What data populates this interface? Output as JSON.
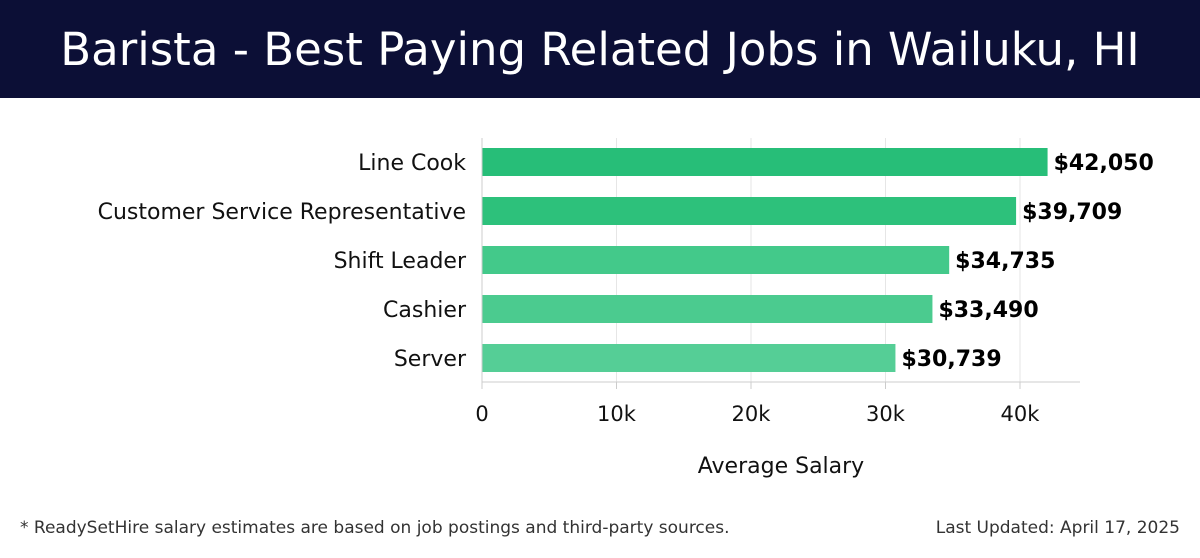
{
  "header": {
    "title": "Barista - Best Paying Related Jobs in Wailuku, HI"
  },
  "chart_data": {
    "type": "bar",
    "orientation": "horizontal",
    "categories": [
      "Line Cook",
      "Customer Service Representative",
      "Shift Leader",
      "Cashier",
      "Server"
    ],
    "values": [
      42050,
      39709,
      34735,
      33490,
      30739
    ],
    "data_labels": [
      "$42,050",
      "$39,709",
      "$34,735",
      "$33,490",
      "$30,739"
    ],
    "xlabel": "Average Salary",
    "ylabel": "",
    "xlim": [
      0,
      44000
    ],
    "x_ticks": [
      0,
      10000,
      20000,
      30000,
      40000
    ],
    "x_tick_labels": [
      "0",
      "10k",
      "20k",
      "30k",
      "40k"
    ],
    "grid": true,
    "bar_colors": [
      "#27be78",
      "#2dc17b",
      "#43c98a",
      "#4bcb8f",
      "#55ce96"
    ]
  },
  "footer": {
    "note": "* ReadySetHire salary estimates are based on job postings and third-party sources.",
    "updated": "Last Updated: April 17, 2025"
  }
}
